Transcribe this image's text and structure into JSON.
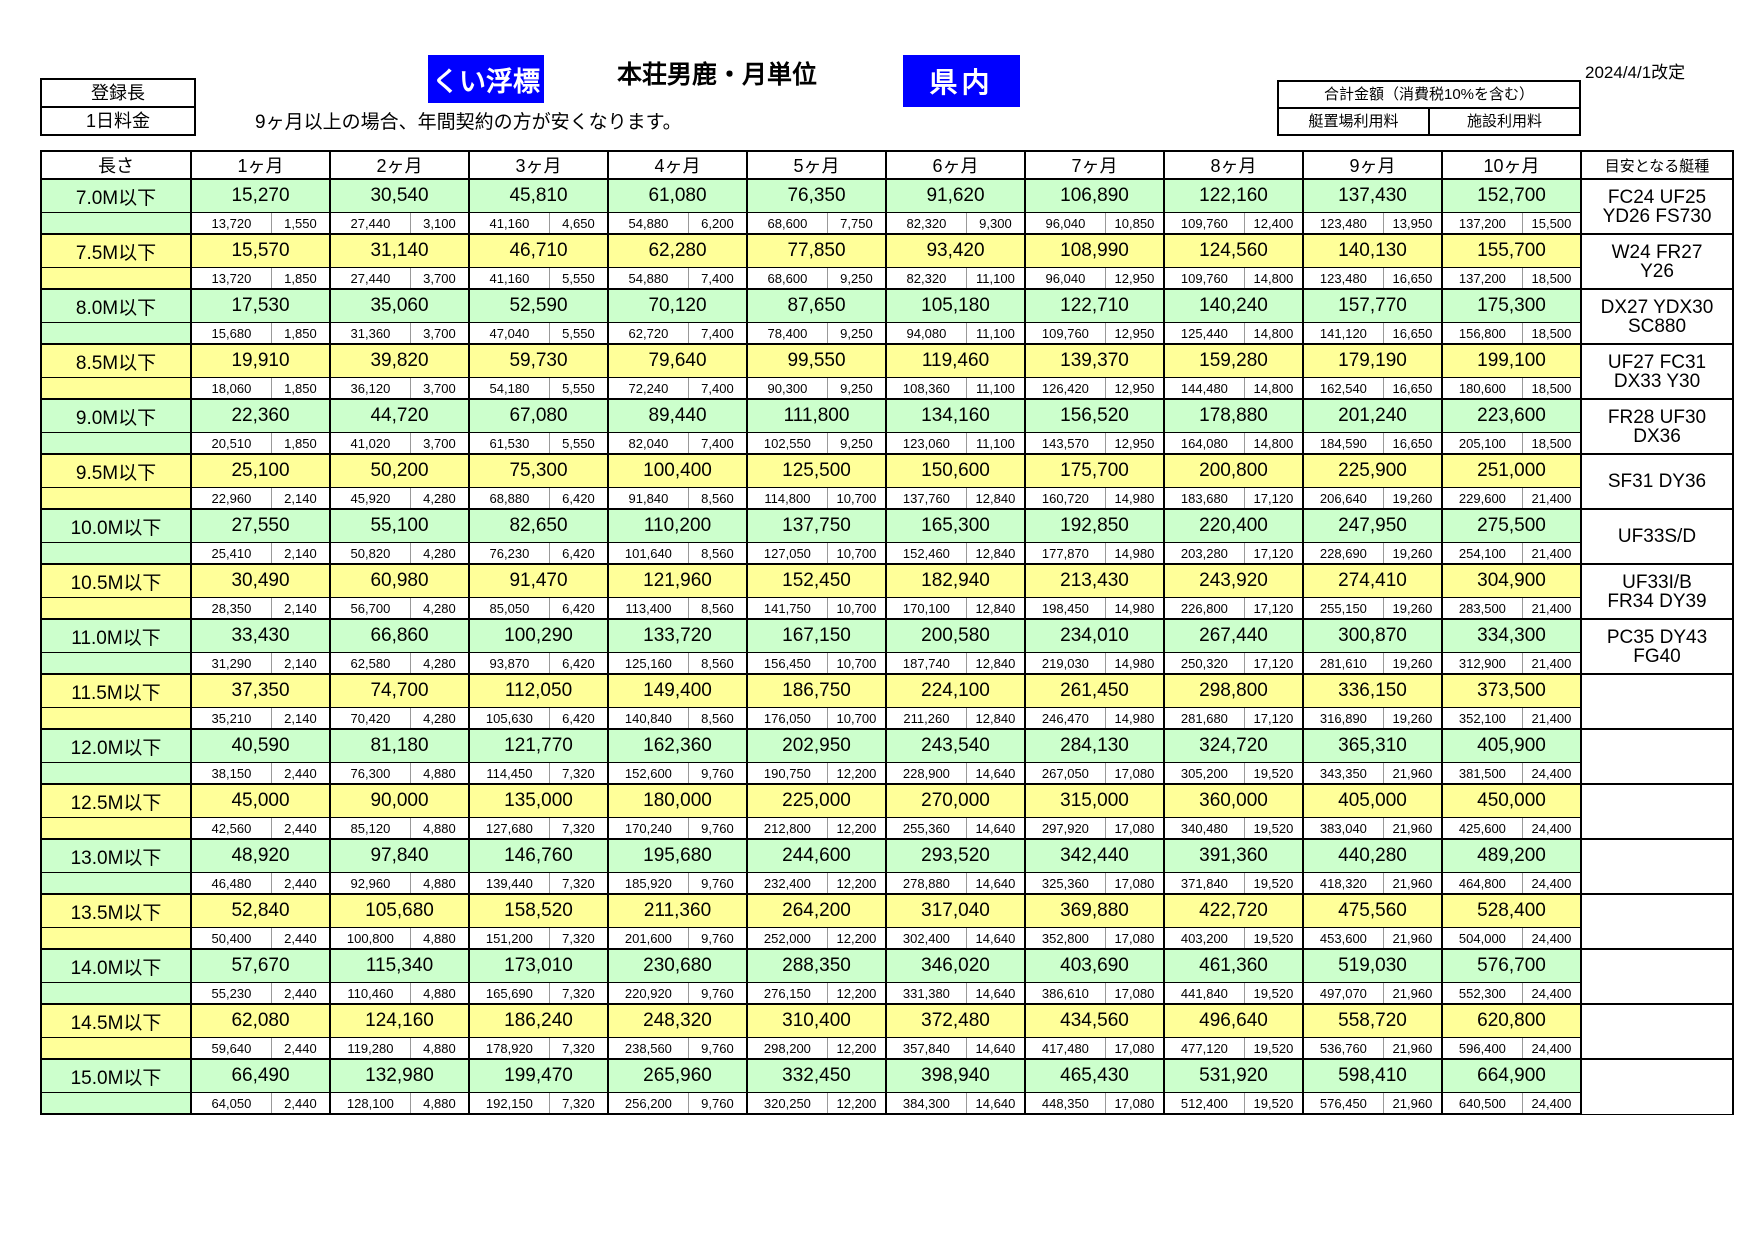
{
  "header": {
    "registered_length_label": "登録長",
    "daily_rate_label": "1日料金",
    "pile_buoy_badge": "くい浮標",
    "title": "本荘男鹿・月単位",
    "prefecture_badge": "県内",
    "revision_date": "2024/4/1改定",
    "note": "9ヶ月以上の場合、年間契約の方が安くなります。",
    "total_box": {
      "title": "合計金額（消費税10%を含む）",
      "col1": "艇置場利用料",
      "col2": "施設利用料"
    }
  },
  "colors": {
    "row_green": "#CCFFCC",
    "row_yellow": "#FFFF99",
    "badge_blue": "#0000FF",
    "border": "#000000"
  },
  "table": {
    "columns": [
      "長さ",
      "1ヶ月",
      "2ヶ月",
      "3ヶ月",
      "4ヶ月",
      "5ヶ月",
      "6ヶ月",
      "7ヶ月",
      "8ヶ月",
      "9ヶ月",
      "10ヶ月",
      "目安となる艇種"
    ],
    "rows": [
      {
        "length": "7.0M以下",
        "tone": "green",
        "totals": [
          "15,270",
          "30,540",
          "45,810",
          "61,080",
          "76,350",
          "91,620",
          "106,890",
          "122,160",
          "137,430",
          "152,700"
        ],
        "breakdown": [
          [
            "13,720",
            "1,550"
          ],
          [
            "27,440",
            "3,100"
          ],
          [
            "41,160",
            "4,650"
          ],
          [
            "54,880",
            "6,200"
          ],
          [
            "68,600",
            "7,750"
          ],
          [
            "82,320",
            "9,300"
          ],
          [
            "96,040",
            "10,850"
          ],
          [
            "109,760",
            "12,400"
          ],
          [
            "123,480",
            "13,950"
          ],
          [
            "137,200",
            "15,500"
          ]
        ],
        "boat_main": "FC24  UF25",
        "boat_sub": "YD26  FS730"
      },
      {
        "length": "7.5M以下",
        "tone": "yellow",
        "totals": [
          "15,570",
          "31,140",
          "46,710",
          "62,280",
          "77,850",
          "93,420",
          "108,990",
          "124,560",
          "140,130",
          "155,700"
        ],
        "breakdown": [
          [
            "13,720",
            "1,850"
          ],
          [
            "27,440",
            "3,700"
          ],
          [
            "41,160",
            "5,550"
          ],
          [
            "54,880",
            "7,400"
          ],
          [
            "68,600",
            "9,250"
          ],
          [
            "82,320",
            "11,100"
          ],
          [
            "96,040",
            "12,950"
          ],
          [
            "109,760",
            "14,800"
          ],
          [
            "123,480",
            "16,650"
          ],
          [
            "137,200",
            "18,500"
          ]
        ],
        "boat_main": "W24  FR27",
        "boat_sub": "Y26"
      },
      {
        "length": "8.0M以下",
        "tone": "green",
        "totals": [
          "17,530",
          "35,060",
          "52,590",
          "70,120",
          "87,650",
          "105,180",
          "122,710",
          "140,240",
          "157,770",
          "175,300"
        ],
        "breakdown": [
          [
            "15,680",
            "1,850"
          ],
          [
            "31,360",
            "3,700"
          ],
          [
            "47,040",
            "5,550"
          ],
          [
            "62,720",
            "7,400"
          ],
          [
            "78,400",
            "9,250"
          ],
          [
            "94,080",
            "11,100"
          ],
          [
            "109,760",
            "12,950"
          ],
          [
            "125,440",
            "14,800"
          ],
          [
            "141,120",
            "16,650"
          ],
          [
            "156,800",
            "18,500"
          ]
        ],
        "boat_main": "DX27  YDX30",
        "boat_sub": "SC880"
      },
      {
        "length": "8.5M以下",
        "tone": "yellow",
        "totals": [
          "19,910",
          "39,820",
          "59,730",
          "79,640",
          "99,550",
          "119,460",
          "139,370",
          "159,280",
          "179,190",
          "199,100"
        ],
        "breakdown": [
          [
            "18,060",
            "1,850"
          ],
          [
            "36,120",
            "3,700"
          ],
          [
            "54,180",
            "5,550"
          ],
          [
            "72,240",
            "7,400"
          ],
          [
            "90,300",
            "9,250"
          ],
          [
            "108,360",
            "11,100"
          ],
          [
            "126,420",
            "12,950"
          ],
          [
            "144,480",
            "14,800"
          ],
          [
            "162,540",
            "16,650"
          ],
          [
            "180,600",
            "18,500"
          ]
        ],
        "boat_main": "UF27  FC31",
        "boat_sub": "DX33  Y30"
      },
      {
        "length": "9.0M以下",
        "tone": "green",
        "totals": [
          "22,360",
          "44,720",
          "67,080",
          "89,440",
          "111,800",
          "134,160",
          "156,520",
          "178,880",
          "201,240",
          "223,600"
        ],
        "breakdown": [
          [
            "20,510",
            "1,850"
          ],
          [
            "41,020",
            "3,700"
          ],
          [
            "61,530",
            "5,550"
          ],
          [
            "82,040",
            "7,400"
          ],
          [
            "102,550",
            "9,250"
          ],
          [
            "123,060",
            "11,100"
          ],
          [
            "143,570",
            "12,950"
          ],
          [
            "164,080",
            "14,800"
          ],
          [
            "184,590",
            "16,650"
          ],
          [
            "205,100",
            "18,500"
          ]
        ],
        "boat_main": "FR28  UF30",
        "boat_sub": "DX36"
      },
      {
        "length": "9.5M以下",
        "tone": "yellow",
        "totals": [
          "25,100",
          "50,200",
          "75,300",
          "100,400",
          "125,500",
          "150,600",
          "175,700",
          "200,800",
          "225,900",
          "251,000"
        ],
        "breakdown": [
          [
            "22,960",
            "2,140"
          ],
          [
            "45,920",
            "4,280"
          ],
          [
            "68,880",
            "6,420"
          ],
          [
            "91,840",
            "8,560"
          ],
          [
            "114,800",
            "10,700"
          ],
          [
            "137,760",
            "12,840"
          ],
          [
            "160,720",
            "14,980"
          ],
          [
            "183,680",
            "17,120"
          ],
          [
            "206,640",
            "19,260"
          ],
          [
            "229,600",
            "21,400"
          ]
        ],
        "boat_main": "SF31  DY36",
        "boat_sub": ""
      },
      {
        "length": "10.0M以下",
        "tone": "green",
        "totals": [
          "27,550",
          "55,100",
          "82,650",
          "110,200",
          "137,750",
          "165,300",
          "192,850",
          "220,400",
          "247,950",
          "275,500"
        ],
        "breakdown": [
          [
            "25,410",
            "2,140"
          ],
          [
            "50,820",
            "4,280"
          ],
          [
            "76,230",
            "6,420"
          ],
          [
            "101,640",
            "8,560"
          ],
          [
            "127,050",
            "10,700"
          ],
          [
            "152,460",
            "12,840"
          ],
          [
            "177,870",
            "14,980"
          ],
          [
            "203,280",
            "17,120"
          ],
          [
            "228,690",
            "19,260"
          ],
          [
            "254,100",
            "21,400"
          ]
        ],
        "boat_main": "UF33S/D",
        "boat_sub": ""
      },
      {
        "length": "10.5M以下",
        "tone": "yellow",
        "totals": [
          "30,490",
          "60,980",
          "91,470",
          "121,960",
          "152,450",
          "182,940",
          "213,430",
          "243,920",
          "274,410",
          "304,900"
        ],
        "breakdown": [
          [
            "28,350",
            "2,140"
          ],
          [
            "56,700",
            "4,280"
          ],
          [
            "85,050",
            "6,420"
          ],
          [
            "113,400",
            "8,560"
          ],
          [
            "141,750",
            "10,700"
          ],
          [
            "170,100",
            "12,840"
          ],
          [
            "198,450",
            "14,980"
          ],
          [
            "226,800",
            "17,120"
          ],
          [
            "255,150",
            "19,260"
          ],
          [
            "283,500",
            "21,400"
          ]
        ],
        "boat_main": "UF33I/B",
        "boat_sub": "FR34  DY39"
      },
      {
        "length": "11.0M以下",
        "tone": "green",
        "totals": [
          "33,430",
          "66,860",
          "100,290",
          "133,720",
          "167,150",
          "200,580",
          "234,010",
          "267,440",
          "300,870",
          "334,300"
        ],
        "breakdown": [
          [
            "31,290",
            "2,140"
          ],
          [
            "62,580",
            "4,280"
          ],
          [
            "93,870",
            "6,420"
          ],
          [
            "125,160",
            "8,560"
          ],
          [
            "156,450",
            "10,700"
          ],
          [
            "187,740",
            "12,840"
          ],
          [
            "219,030",
            "14,980"
          ],
          [
            "250,320",
            "17,120"
          ],
          [
            "281,610",
            "19,260"
          ],
          [
            "312,900",
            "21,400"
          ]
        ],
        "boat_main": "PC35  DY43",
        "boat_sub": "FG40"
      },
      {
        "length": "11.5M以下",
        "tone": "yellow",
        "totals": [
          "37,350",
          "74,700",
          "112,050",
          "149,400",
          "186,750",
          "224,100",
          "261,450",
          "298,800",
          "336,150",
          "373,500"
        ],
        "breakdown": [
          [
            "35,210",
            "2,140"
          ],
          [
            "70,420",
            "4,280"
          ],
          [
            "105,630",
            "6,420"
          ],
          [
            "140,840",
            "8,560"
          ],
          [
            "176,050",
            "10,700"
          ],
          [
            "211,260",
            "12,840"
          ],
          [
            "246,470",
            "14,980"
          ],
          [
            "281,680",
            "17,120"
          ],
          [
            "316,890",
            "19,260"
          ],
          [
            "352,100",
            "21,400"
          ]
        ],
        "boat_main": "",
        "boat_sub": ""
      },
      {
        "length": "12.0M以下",
        "tone": "green",
        "totals": [
          "40,590",
          "81,180",
          "121,770",
          "162,360",
          "202,950",
          "243,540",
          "284,130",
          "324,720",
          "365,310",
          "405,900"
        ],
        "breakdown": [
          [
            "38,150",
            "2,440"
          ],
          [
            "76,300",
            "4,880"
          ],
          [
            "114,450",
            "7,320"
          ],
          [
            "152,600",
            "9,760"
          ],
          [
            "190,750",
            "12,200"
          ],
          [
            "228,900",
            "14,640"
          ],
          [
            "267,050",
            "17,080"
          ],
          [
            "305,200",
            "19,520"
          ],
          [
            "343,350",
            "21,960"
          ],
          [
            "381,500",
            "24,400"
          ]
        ],
        "boat_main": "",
        "boat_sub": ""
      },
      {
        "length": "12.5M以下",
        "tone": "yellow",
        "totals": [
          "45,000",
          "90,000",
          "135,000",
          "180,000",
          "225,000",
          "270,000",
          "315,000",
          "360,000",
          "405,000",
          "450,000"
        ],
        "breakdown": [
          [
            "42,560",
            "2,440"
          ],
          [
            "85,120",
            "4,880"
          ],
          [
            "127,680",
            "7,320"
          ],
          [
            "170,240",
            "9,760"
          ],
          [
            "212,800",
            "12,200"
          ],
          [
            "255,360",
            "14,640"
          ],
          [
            "297,920",
            "17,080"
          ],
          [
            "340,480",
            "19,520"
          ],
          [
            "383,040",
            "21,960"
          ],
          [
            "425,600",
            "24,400"
          ]
        ],
        "boat_main": "",
        "boat_sub": ""
      },
      {
        "length": "13.0M以下",
        "tone": "green",
        "totals": [
          "48,920",
          "97,840",
          "146,760",
          "195,680",
          "244,600",
          "293,520",
          "342,440",
          "391,360",
          "440,280",
          "489,200"
        ],
        "breakdown": [
          [
            "46,480",
            "2,440"
          ],
          [
            "92,960",
            "4,880"
          ],
          [
            "139,440",
            "7,320"
          ],
          [
            "185,920",
            "9,760"
          ],
          [
            "232,400",
            "12,200"
          ],
          [
            "278,880",
            "14,640"
          ],
          [
            "325,360",
            "17,080"
          ],
          [
            "371,840",
            "19,520"
          ],
          [
            "418,320",
            "21,960"
          ],
          [
            "464,800",
            "24,400"
          ]
        ],
        "boat_main": "",
        "boat_sub": ""
      },
      {
        "length": "13.5M以下",
        "tone": "yellow",
        "totals": [
          "52,840",
          "105,680",
          "158,520",
          "211,360",
          "264,200",
          "317,040",
          "369,880",
          "422,720",
          "475,560",
          "528,400"
        ],
        "breakdown": [
          [
            "50,400",
            "2,440"
          ],
          [
            "100,800",
            "4,880"
          ],
          [
            "151,200",
            "7,320"
          ],
          [
            "201,600",
            "9,760"
          ],
          [
            "252,000",
            "12,200"
          ],
          [
            "302,400",
            "14,640"
          ],
          [
            "352,800",
            "17,080"
          ],
          [
            "403,200",
            "19,520"
          ],
          [
            "453,600",
            "21,960"
          ],
          [
            "504,000",
            "24,400"
          ]
        ],
        "boat_main": "",
        "boat_sub": ""
      },
      {
        "length": "14.0M以下",
        "tone": "green",
        "totals": [
          "57,670",
          "115,340",
          "173,010",
          "230,680",
          "288,350",
          "346,020",
          "403,690",
          "461,360",
          "519,030",
          "576,700"
        ],
        "breakdown": [
          [
            "55,230",
            "2,440"
          ],
          [
            "110,460",
            "4,880"
          ],
          [
            "165,690",
            "7,320"
          ],
          [
            "220,920",
            "9,760"
          ],
          [
            "276,150",
            "12,200"
          ],
          [
            "331,380",
            "14,640"
          ],
          [
            "386,610",
            "17,080"
          ],
          [
            "441,840",
            "19,520"
          ],
          [
            "497,070",
            "21,960"
          ],
          [
            "552,300",
            "24,400"
          ]
        ],
        "boat_main": "",
        "boat_sub": ""
      },
      {
        "length": "14.5M以下",
        "tone": "yellow",
        "totals": [
          "62,080",
          "124,160",
          "186,240",
          "248,320",
          "310,400",
          "372,480",
          "434,560",
          "496,640",
          "558,720",
          "620,800"
        ],
        "breakdown": [
          [
            "59,640",
            "2,440"
          ],
          [
            "119,280",
            "4,880"
          ],
          [
            "178,920",
            "7,320"
          ],
          [
            "238,560",
            "9,760"
          ],
          [
            "298,200",
            "12,200"
          ],
          [
            "357,840",
            "14,640"
          ],
          [
            "417,480",
            "17,080"
          ],
          [
            "477,120",
            "19,520"
          ],
          [
            "536,760",
            "21,960"
          ],
          [
            "596,400",
            "24,400"
          ]
        ],
        "boat_main": "",
        "boat_sub": ""
      },
      {
        "length": "15.0M以下",
        "tone": "green",
        "totals": [
          "66,490",
          "132,980",
          "199,470",
          "265,960",
          "332,450",
          "398,940",
          "465,430",
          "531,920",
          "598,410",
          "664,900"
        ],
        "breakdown": [
          [
            "64,050",
            "2,440"
          ],
          [
            "128,100",
            "4,880"
          ],
          [
            "192,150",
            "7,320"
          ],
          [
            "256,200",
            "9,760"
          ],
          [
            "320,250",
            "12,200"
          ],
          [
            "384,300",
            "14,640"
          ],
          [
            "448,350",
            "17,080"
          ],
          [
            "512,400",
            "19,520"
          ],
          [
            "576,450",
            "21,960"
          ],
          [
            "640,500",
            "24,400"
          ]
        ],
        "boat_main": "",
        "boat_sub": ""
      }
    ]
  }
}
